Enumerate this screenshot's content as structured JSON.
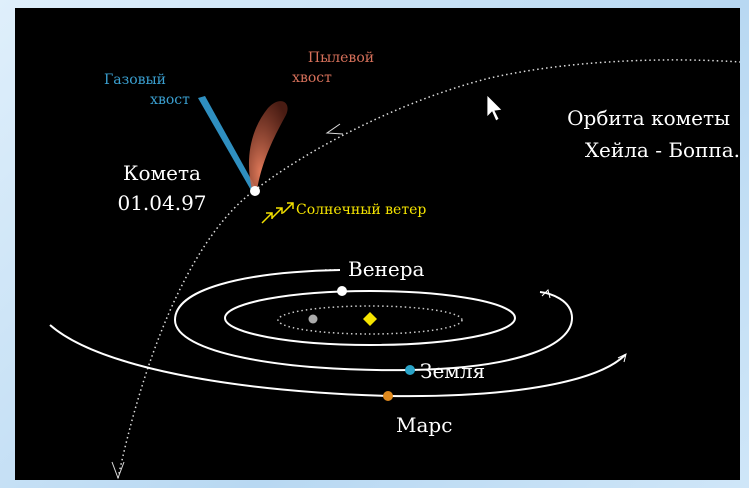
{
  "labels": {
    "gas_tail": [
      "Газовый",
      "хвост"
    ],
    "dust_tail": [
      "Пылевой",
      "хвост"
    ],
    "comet": [
      "Комета",
      "01.04.97"
    ],
    "solar_wind": "Солнечный ветер",
    "orbit": [
      "Орбита кометы",
      "Хейла - Боппа."
    ],
    "venus": "Венера",
    "earth": "Земля",
    "mars": "Марс"
  }
}
